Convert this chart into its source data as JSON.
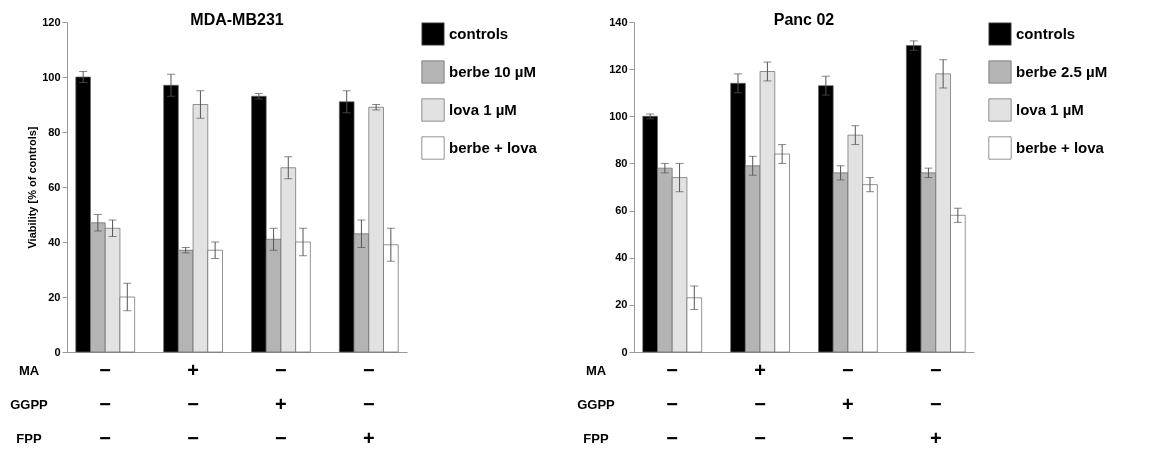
{
  "chart_data": [
    {
      "type": "bar",
      "title": "MDA-MB231",
      "ylabel": "Viability [% of controls]",
      "categories": [
        "−\n−\n−",
        "+\n−\n−",
        "−\n+\n−",
        "−\n−\n+"
      ],
      "annotations": [
        "MA",
        "GGPP",
        "FPP"
      ],
      "ylim": [
        0,
        120
      ],
      "yticks": [
        0,
        20,
        40,
        60,
        80,
        100,
        120
      ],
      "grid": false,
      "legend": "right",
      "series": [
        {
          "name": "controls",
          "color": "#000000",
          "values": [
            100,
            97,
            93,
            91
          ],
          "errors": [
            2,
            4,
            1,
            4
          ]
        },
        {
          "name": "berbe 10 µM",
          "color": "#b4b4b4",
          "values": [
            47,
            37,
            41,
            43
          ],
          "errors": [
            3,
            1,
            4,
            5
          ]
        },
        {
          "name": "lova 1 µM",
          "color": "#e2e2e2",
          "values": [
            45,
            90,
            67,
            89
          ],
          "errors": [
            3,
            5,
            4,
            1
          ]
        },
        {
          "name": "berbe + lova",
          "color": "#ffffff",
          "values": [
            20,
            37,
            40,
            39
          ],
          "errors": [
            5,
            3,
            5,
            6
          ]
        }
      ]
    },
    {
      "type": "bar",
      "title": "Panc 02",
      "categories": [
        "−\n−\n−",
        "+\n−\n−",
        "−\n+\n−",
        "−\n−\n+"
      ],
      "annotations": [
        "MA",
        "GGPP",
        "FPP"
      ],
      "ylim": [
        0,
        140
      ],
      "yticks": [
        0,
        20,
        40,
        60,
        80,
        100,
        120,
        140
      ],
      "grid": false,
      "legend": "right",
      "series": [
        {
          "name": "controls",
          "color": "#000000",
          "values": [
            100,
            114,
            113,
            130
          ],
          "errors": [
            1,
            4,
            4,
            2
          ]
        },
        {
          "name": "berbe 2.5 µM",
          "color": "#b4b4b4",
          "values": [
            78,
            79,
            76,
            76
          ],
          "errors": [
            2,
            4,
            3,
            2
          ]
        },
        {
          "name": "lova 1 µM",
          "color": "#e2e2e2",
          "values": [
            74,
            119,
            92,
            118
          ],
          "errors": [
            6,
            4,
            4,
            6
          ]
        },
        {
          "name": "berbe + lova",
          "color": "#ffffff",
          "values": [
            23,
            84,
            71,
            58
          ],
          "errors": [
            5,
            4,
            3,
            3
          ]
        }
      ]
    }
  ]
}
